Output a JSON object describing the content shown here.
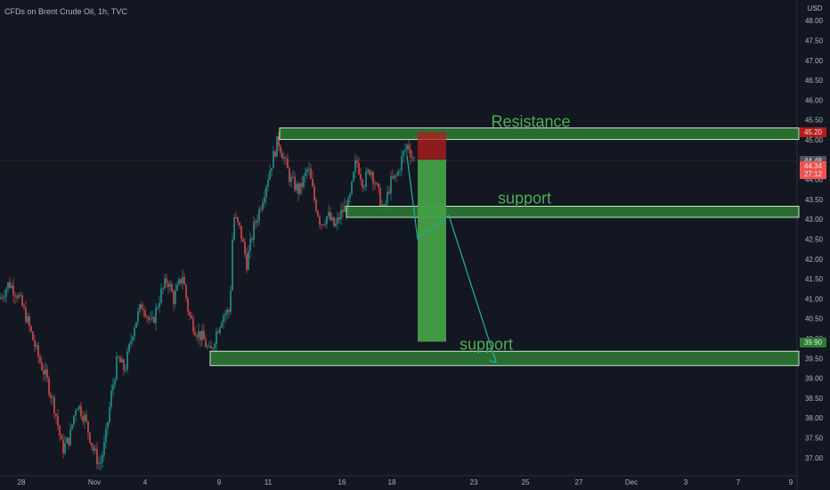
{
  "header": {
    "title": "CFDs on Brent Crude Oil, 1h, TVC",
    "currency": "USD"
  },
  "colors": {
    "background": "#131722",
    "up": "#26a69a",
    "down": "#ef5350",
    "zone_fill": "#2e7d32",
    "zone_border": "#c8e6c9",
    "annotation_text": "#4caf50",
    "arrow": "#26a69a",
    "position_profit": "#43a047",
    "position_loss": "#b71c1c"
  },
  "chart_data": {
    "type": "candlestick",
    "x_axis": {
      "labels": [
        "28",
        "Nov",
        "4",
        "9",
        "11",
        "16",
        "18",
        "23",
        "25",
        "27",
        "Dec",
        "3",
        "7",
        "9"
      ]
    },
    "y_axis": {
      "range": [
        36.8,
        48.1
      ],
      "ticks": [
        "37.00",
        "37.50",
        "38.00",
        "38.50",
        "39.00",
        "39.50",
        "40.00",
        "40.50",
        "41.00",
        "41.50",
        "42.00",
        "42.50",
        "43.00",
        "43.50",
        "44.00",
        "44.50",
        "45.00",
        "45.50",
        "46.00",
        "46.50",
        "47.00",
        "47.50",
        "48.00"
      ]
    },
    "price_path": [
      [
        0,
        41.0
      ],
      [
        10,
        41.4
      ],
      [
        20,
        41.1
      ],
      [
        30,
        40.5
      ],
      [
        42,
        39.6
      ],
      [
        52,
        39.0
      ],
      [
        62,
        38.2
      ],
      [
        70,
        37.2
      ],
      [
        78,
        37.5
      ],
      [
        86,
        38.4
      ],
      [
        95,
        38.0
      ],
      [
        105,
        37.2
      ],
      [
        112,
        36.8
      ],
      [
        118,
        37.4
      ],
      [
        125,
        38.6
      ],
      [
        132,
        39.5
      ],
      [
        140,
        39.2
      ],
      [
        150,
        40.3
      ],
      [
        160,
        40.9
      ],
      [
        170,
        40.3
      ],
      [
        180,
        41.1
      ],
      [
        188,
        41.5
      ],
      [
        195,
        41.0
      ],
      [
        205,
        41.6
      ],
      [
        212,
        40.6
      ],
      [
        220,
        40.2
      ],
      [
        228,
        40.0
      ],
      [
        236,
        39.6
      ],
      [
        242,
        40.1
      ],
      [
        250,
        40.6
      ],
      [
        258,
        40.7
      ],
      [
        262,
        43.1
      ],
      [
        270,
        42.7
      ],
      [
        277,
        41.9
      ],
      [
        285,
        42.8
      ],
      [
        292,
        43.3
      ],
      [
        300,
        44.0
      ],
      [
        306,
        44.5
      ],
      [
        312,
        45.0
      ],
      [
        318,
        44.6
      ],
      [
        326,
        44.0
      ],
      [
        336,
        43.7
      ],
      [
        346,
        44.3
      ],
      [
        353,
        43.5
      ],
      [
        360,
        42.9
      ],
      [
        368,
        43.1
      ],
      [
        376,
        42.8
      ],
      [
        384,
        43.2
      ],
      [
        392,
        43.4
      ],
      [
        400,
        44.5
      ],
      [
        408,
        43.9
      ],
      [
        416,
        44.3
      ],
      [
        424,
        43.7
      ],
      [
        431,
        43.2
      ],
      [
        438,
        43.9
      ],
      [
        446,
        44.1
      ],
      [
        452,
        44.6
      ],
      [
        458,
        44.9
      ],
      [
        464,
        44.5
      ]
    ],
    "zones": [
      {
        "label": "Resistance",
        "low": 45.01,
        "high": 45.3
      },
      {
        "label": "support",
        "low": 43.05,
        "high": 43.33
      },
      {
        "label": "support",
        "low": 39.32,
        "high": 39.68
      }
    ],
    "position": {
      "entry": 44.5,
      "stop": 45.2,
      "target": 39.92
    },
    "arrow_path": [
      {
        "x": "18",
        "y": 42.5
      },
      {
        "x": "23",
        "y": 43.1
      },
      {
        "x": "27",
        "y": 39.4
      }
    ],
    "price_labels": [
      {
        "value": "45.20",
        "color": "#b71c1c",
        "y": 45.2
      },
      {
        "value": "44.48",
        "color": "#4e5366",
        "y": 44.48
      },
      {
        "value": "44.34",
        "color": "#ef5350",
        "y": 44.34
      },
      {
        "value": "27:12",
        "color": "#ef5350",
        "y": 44.14
      },
      {
        "value": "39.90",
        "color": "#2e7d32",
        "y": 39.9
      }
    ],
    "grid": false
  }
}
